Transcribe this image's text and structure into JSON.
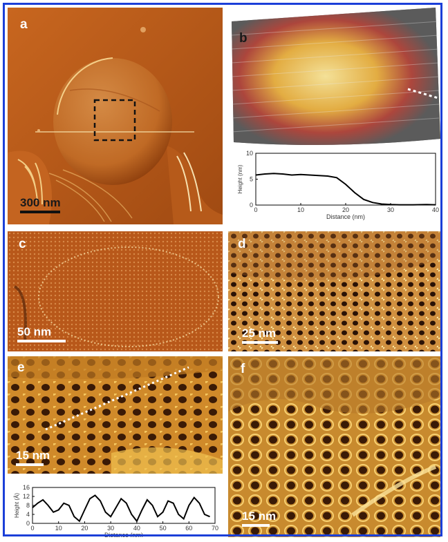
{
  "panels": {
    "a": {
      "label": "a",
      "scale": "300 nm"
    },
    "b": {
      "label": "b"
    },
    "c": {
      "label": "c",
      "scale": "50 nm"
    },
    "d": {
      "label": "d",
      "scale": "25 nm"
    },
    "e": {
      "label": "e",
      "scale": "15 nm"
    },
    "f": {
      "label": "f",
      "scale": "15 nm"
    }
  },
  "colors": {
    "frame": "#1b3fd8",
    "afm_dark": "#3a1a06",
    "afm_mid": "#b5581c",
    "afm_light": "#f5d66a"
  },
  "chart_data": [
    {
      "type": "line",
      "panel": "b",
      "xlabel": "Distance (nm)",
      "ylabel": "Height (nm)",
      "xlim": [
        0,
        40
      ],
      "ylim": [
        0,
        10
      ],
      "xticks": [
        "0",
        "10",
        "20",
        "30",
        "40"
      ],
      "yticks": [
        "0",
        "5",
        "10"
      ],
      "x": [
        0,
        2,
        4,
        6,
        8,
        10,
        12,
        14,
        16,
        18,
        20,
        22,
        24,
        26,
        28,
        30,
        32,
        35,
        38,
        40
      ],
      "y": [
        5.8,
        6.0,
        6.1,
        6.0,
        5.8,
        5.9,
        5.8,
        5.7,
        5.6,
        5.3,
        4.0,
        2.4,
        1.1,
        0.5,
        0.2,
        0.1,
        0.05,
        0.05,
        0.1,
        0.05
      ]
    },
    {
      "type": "line",
      "panel": "e",
      "xlabel": "Distance (nm)",
      "ylabel": "Height (Å)",
      "xlim": [
        0,
        70
      ],
      "ylim": [
        0,
        16
      ],
      "xticks": [
        "0",
        "10",
        "20",
        "30",
        "40",
        "50",
        "60",
        "70"
      ],
      "yticks": [
        "0",
        "4",
        "8",
        "12",
        "16"
      ],
      "x": [
        0,
        2,
        4,
        6,
        8,
        10,
        12,
        14,
        16,
        18,
        20,
        22,
        24,
        26,
        28,
        30,
        32,
        34,
        36,
        38,
        40,
        42,
        44,
        46,
        48,
        50,
        52,
        54,
        56,
        58,
        60,
        62,
        64,
        66,
        68
      ],
      "y": [
        7,
        9,
        10.5,
        8,
        5,
        6,
        9,
        8,
        3,
        1,
        6,
        11,
        12.5,
        10,
        5,
        3,
        7,
        11,
        9,
        4,
        1,
        6,
        10.5,
        8,
        3,
        5,
        10,
        9,
        4,
        2,
        8,
        11.5,
        9,
        4,
        3
      ]
    }
  ]
}
